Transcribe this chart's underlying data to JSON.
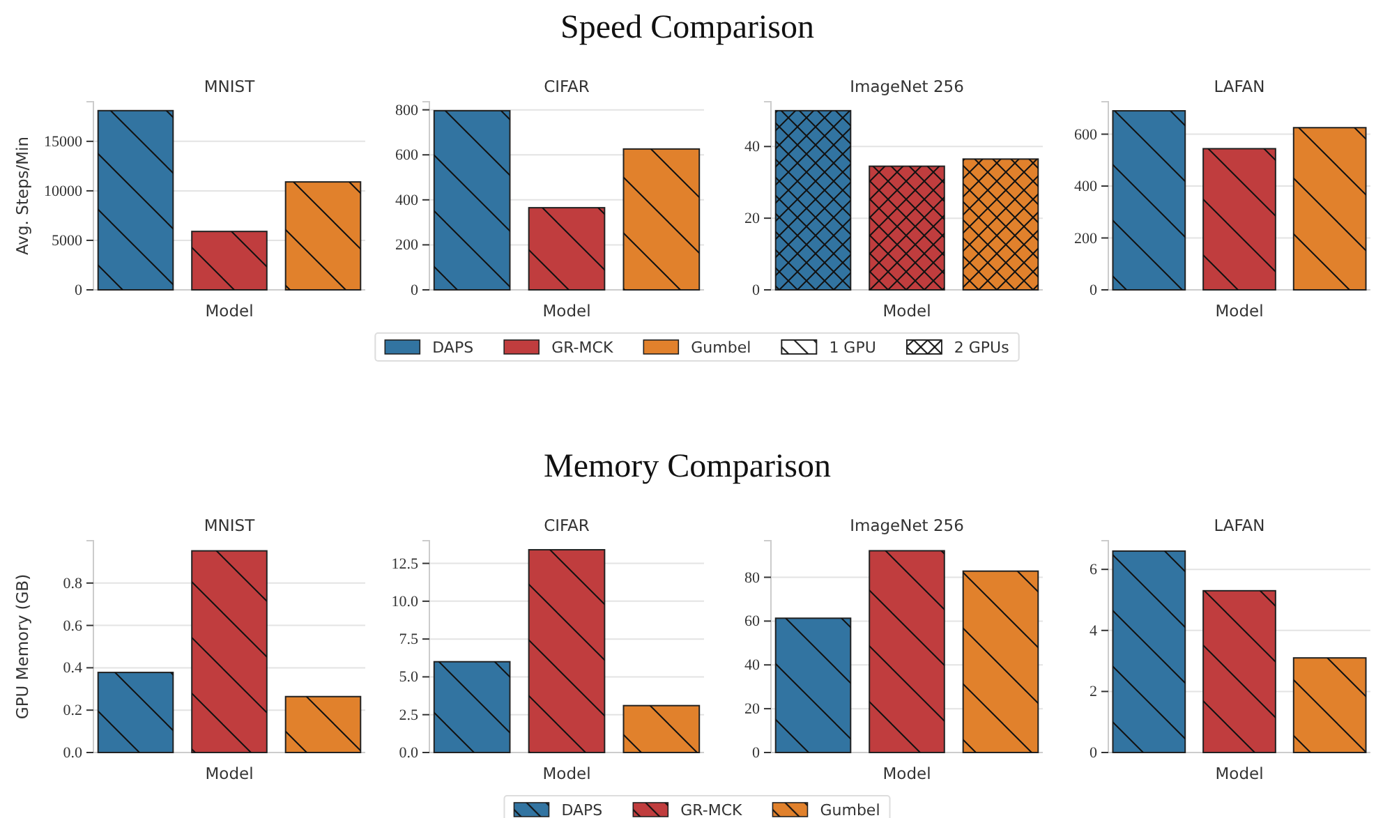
{
  "chart_data": [
    {
      "type": "bar",
      "title": "MNIST",
      "annotations": [
        "Speed Comparison"
      ],
      "xlabel": "Model",
      "ylabel": "Avg. Steps/Min",
      "categories": [
        null
      ],
      "ylim": [
        0,
        19000
      ],
      "yticks": [
        0,
        5000,
        10000,
        15000
      ],
      "grid": "y",
      "legend": false,
      "series": [
        {
          "color": "#3274a1",
          "values": [
            18100
          ]
        },
        {
          "color": "#c03d3e",
          "values": [
            5900
          ]
        },
        {
          "color": "#e1812c",
          "values": [
            10900
          ]
        }
      ]
    },
    {
      "type": "bar",
      "title": "CIFAR",
      "annotations": [
        "1 GPU",
        "2 GPUs"
      ],
      "xlabel": "Model",
      "categories": [
        null
      ],
      "ylim": [
        0,
        836
      ],
      "yticks": [
        0,
        200,
        400,
        600,
        800
      ],
      "grid": "y",
      "legend": "bottom",
      "series": [
        {
          "name": "DAPS",
          "color": "#3274a1",
          "values": [
            796
          ]
        },
        {
          "name": "GR-MCK",
          "color": "#c03d3e",
          "values": [
            365
          ]
        },
        {
          "name": "Gumbel",
          "color": "#e1812c",
          "values": [
            626
          ]
        }
      ]
    },
    {
      "type": "bar",
      "title": "ImageNet 256",
      "xlabel": "Model",
      "categories": [
        null
      ],
      "ylim": [
        0,
        52.5
      ],
      "yticks": [
        0,
        20,
        40
      ],
      "grid": "y",
      "legend": false,
      "series": [
        {
          "color": "#3274a1",
          "values": [
            50
          ]
        },
        {
          "color": "#c03d3e",
          "values": [
            34.5
          ]
        },
        {
          "color": "#e1812c",
          "values": [
            36.5
          ]
        }
      ]
    },
    {
      "type": "bar",
      "title": "LAFAN",
      "xlabel": "Model",
      "categories": [
        null
      ],
      "ylim": [
        0,
        725
      ],
      "yticks": [
        0,
        200,
        400,
        600
      ],
      "grid": "y",
      "legend": false,
      "series": [
        {
          "color": "#3274a1",
          "values": [
            690
          ]
        },
        {
          "color": "#c03d3e",
          "values": [
            544
          ]
        },
        {
          "color": "#e1812c",
          "values": [
            625
          ]
        }
      ]
    },
    {
      "type": "bar",
      "title": "MNIST",
      "annotations": [
        "Memory Comparison"
      ],
      "xlabel": "Model",
      "ylabel": "GPU Memory (GB)",
      "categories": [
        null
      ],
      "ylim": [
        0,
        1.0
      ],
      "yticks": [
        {
          "value": 0,
          "label": "0.0"
        },
        0.2,
        0.4,
        0.6,
        0.8
      ],
      "grid": "y",
      "legend": false,
      "series": [
        {
          "color": "#3274a1",
          "values": [
            0.378
          ]
        },
        {
          "color": "#c03d3e",
          "values": [
            0.952
          ]
        },
        {
          "color": "#e1812c",
          "values": [
            0.264
          ]
        }
      ]
    },
    {
      "type": "bar",
      "title": "CIFAR",
      "xlabel": "Model",
      "categories": [
        null
      ],
      "ylim": [
        0,
        14.0
      ],
      "yticks": [
        {
          "value": 0,
          "label": "0.0"
        },
        2.5,
        {
          "value": 5,
          "label": "5.0"
        },
        7.5,
        {
          "value": 10,
          "label": "10.0"
        },
        12.5
      ],
      "grid": "y",
      "legend": "bottom",
      "series": [
        {
          "name": "DAPS",
          "color": "#3274a1",
          "values": [
            6.0
          ]
        },
        {
          "name": "GR-MCK",
          "color": "#c03d3e",
          "values": [
            13.4
          ]
        },
        {
          "name": "Gumbel",
          "color": "#e1812c",
          "values": [
            3.1
          ]
        }
      ]
    },
    {
      "type": "bar",
      "title": "ImageNet 256",
      "xlabel": "Model",
      "categories": [
        null
      ],
      "ylim": [
        0,
        96.7
      ],
      "yticks": [
        0,
        20,
        40,
        60,
        80
      ],
      "grid": "y",
      "legend": false,
      "series": [
        {
          "color": "#3274a1",
          "values": [
            61.3
          ]
        },
        {
          "color": "#c03d3e",
          "values": [
            92.1
          ]
        },
        {
          "color": "#e1812c",
          "values": [
            82.8
          ]
        }
      ]
    },
    {
      "type": "bar",
      "title": "LAFAN",
      "xlabel": "Model",
      "categories": [
        null
      ],
      "ylim": [
        0,
        6.94
      ],
      "yticks": [
        0,
        2,
        4,
        6
      ],
      "grid": "y",
      "legend": false,
      "series": [
        {
          "color": "#3274a1",
          "values": [
            6.6
          ]
        },
        {
          "color": "#c03d3e",
          "values": [
            5.3
          ]
        },
        {
          "color": "#e1812c",
          "values": [
            3.1
          ]
        }
      ]
    }
  ]
}
